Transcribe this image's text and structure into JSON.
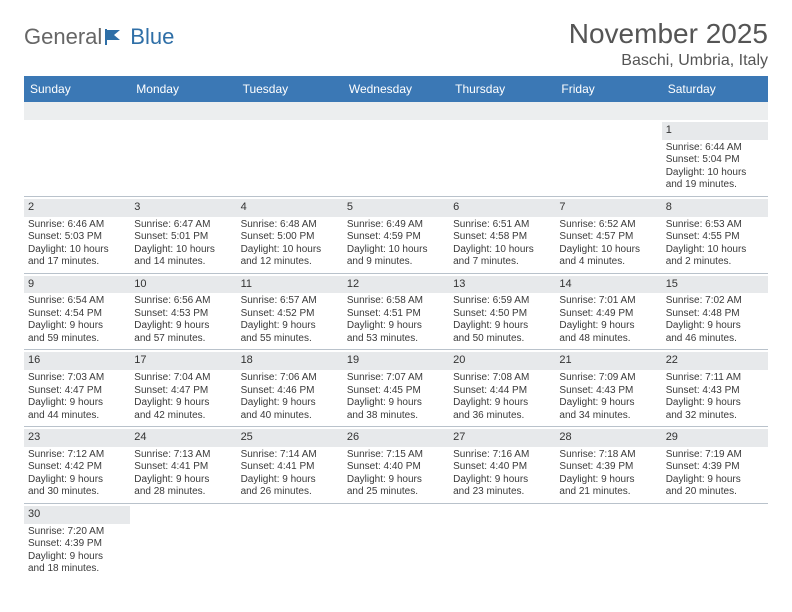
{
  "logo": {
    "textA": "General",
    "textB": "Blue"
  },
  "title": "November 2025",
  "location": "Baschi, Umbria, Italy",
  "colors": {
    "headerBg": "#3b78b5",
    "headerText": "#ffffff",
    "daynumBg": "#e7e9eb",
    "border": "#b9c2cb",
    "bodyText": "#3a3a3a",
    "titleText": "#555555"
  },
  "dayNames": [
    "Sunday",
    "Monday",
    "Tuesday",
    "Wednesday",
    "Thursday",
    "Friday",
    "Saturday"
  ],
  "weeks": [
    [
      null,
      null,
      null,
      null,
      null,
      null,
      {
        "n": "1",
        "sunrise": "Sunrise: 6:44 AM",
        "sunset": "Sunset: 5:04 PM",
        "day1": "Daylight: 10 hours",
        "day2": "and 19 minutes."
      }
    ],
    [
      {
        "n": "2",
        "sunrise": "Sunrise: 6:46 AM",
        "sunset": "Sunset: 5:03 PM",
        "day1": "Daylight: 10 hours",
        "day2": "and 17 minutes."
      },
      {
        "n": "3",
        "sunrise": "Sunrise: 6:47 AM",
        "sunset": "Sunset: 5:01 PM",
        "day1": "Daylight: 10 hours",
        "day2": "and 14 minutes."
      },
      {
        "n": "4",
        "sunrise": "Sunrise: 6:48 AM",
        "sunset": "Sunset: 5:00 PM",
        "day1": "Daylight: 10 hours",
        "day2": "and 12 minutes."
      },
      {
        "n": "5",
        "sunrise": "Sunrise: 6:49 AM",
        "sunset": "Sunset: 4:59 PM",
        "day1": "Daylight: 10 hours",
        "day2": "and 9 minutes."
      },
      {
        "n": "6",
        "sunrise": "Sunrise: 6:51 AM",
        "sunset": "Sunset: 4:58 PM",
        "day1": "Daylight: 10 hours",
        "day2": "and 7 minutes."
      },
      {
        "n": "7",
        "sunrise": "Sunrise: 6:52 AM",
        "sunset": "Sunset: 4:57 PM",
        "day1": "Daylight: 10 hours",
        "day2": "and 4 minutes."
      },
      {
        "n": "8",
        "sunrise": "Sunrise: 6:53 AM",
        "sunset": "Sunset: 4:55 PM",
        "day1": "Daylight: 10 hours",
        "day2": "and 2 minutes."
      }
    ],
    [
      {
        "n": "9",
        "sunrise": "Sunrise: 6:54 AM",
        "sunset": "Sunset: 4:54 PM",
        "day1": "Daylight: 9 hours",
        "day2": "and 59 minutes."
      },
      {
        "n": "10",
        "sunrise": "Sunrise: 6:56 AM",
        "sunset": "Sunset: 4:53 PM",
        "day1": "Daylight: 9 hours",
        "day2": "and 57 minutes."
      },
      {
        "n": "11",
        "sunrise": "Sunrise: 6:57 AM",
        "sunset": "Sunset: 4:52 PM",
        "day1": "Daylight: 9 hours",
        "day2": "and 55 minutes."
      },
      {
        "n": "12",
        "sunrise": "Sunrise: 6:58 AM",
        "sunset": "Sunset: 4:51 PM",
        "day1": "Daylight: 9 hours",
        "day2": "and 53 minutes."
      },
      {
        "n": "13",
        "sunrise": "Sunrise: 6:59 AM",
        "sunset": "Sunset: 4:50 PM",
        "day1": "Daylight: 9 hours",
        "day2": "and 50 minutes."
      },
      {
        "n": "14",
        "sunrise": "Sunrise: 7:01 AM",
        "sunset": "Sunset: 4:49 PM",
        "day1": "Daylight: 9 hours",
        "day2": "and 48 minutes."
      },
      {
        "n": "15",
        "sunrise": "Sunrise: 7:02 AM",
        "sunset": "Sunset: 4:48 PM",
        "day1": "Daylight: 9 hours",
        "day2": "and 46 minutes."
      }
    ],
    [
      {
        "n": "16",
        "sunrise": "Sunrise: 7:03 AM",
        "sunset": "Sunset: 4:47 PM",
        "day1": "Daylight: 9 hours",
        "day2": "and 44 minutes."
      },
      {
        "n": "17",
        "sunrise": "Sunrise: 7:04 AM",
        "sunset": "Sunset: 4:47 PM",
        "day1": "Daylight: 9 hours",
        "day2": "and 42 minutes."
      },
      {
        "n": "18",
        "sunrise": "Sunrise: 7:06 AM",
        "sunset": "Sunset: 4:46 PM",
        "day1": "Daylight: 9 hours",
        "day2": "and 40 minutes."
      },
      {
        "n": "19",
        "sunrise": "Sunrise: 7:07 AM",
        "sunset": "Sunset: 4:45 PM",
        "day1": "Daylight: 9 hours",
        "day2": "and 38 minutes."
      },
      {
        "n": "20",
        "sunrise": "Sunrise: 7:08 AM",
        "sunset": "Sunset: 4:44 PM",
        "day1": "Daylight: 9 hours",
        "day2": "and 36 minutes."
      },
      {
        "n": "21",
        "sunrise": "Sunrise: 7:09 AM",
        "sunset": "Sunset: 4:43 PM",
        "day1": "Daylight: 9 hours",
        "day2": "and 34 minutes."
      },
      {
        "n": "22",
        "sunrise": "Sunrise: 7:11 AM",
        "sunset": "Sunset: 4:43 PM",
        "day1": "Daylight: 9 hours",
        "day2": "and 32 minutes."
      }
    ],
    [
      {
        "n": "23",
        "sunrise": "Sunrise: 7:12 AM",
        "sunset": "Sunset: 4:42 PM",
        "day1": "Daylight: 9 hours",
        "day2": "and 30 minutes."
      },
      {
        "n": "24",
        "sunrise": "Sunrise: 7:13 AM",
        "sunset": "Sunset: 4:41 PM",
        "day1": "Daylight: 9 hours",
        "day2": "and 28 minutes."
      },
      {
        "n": "25",
        "sunrise": "Sunrise: 7:14 AM",
        "sunset": "Sunset: 4:41 PM",
        "day1": "Daylight: 9 hours",
        "day2": "and 26 minutes."
      },
      {
        "n": "26",
        "sunrise": "Sunrise: 7:15 AM",
        "sunset": "Sunset: 4:40 PM",
        "day1": "Daylight: 9 hours",
        "day2": "and 25 minutes."
      },
      {
        "n": "27",
        "sunrise": "Sunrise: 7:16 AM",
        "sunset": "Sunset: 4:40 PM",
        "day1": "Daylight: 9 hours",
        "day2": "and 23 minutes."
      },
      {
        "n": "28",
        "sunrise": "Sunrise: 7:18 AM",
        "sunset": "Sunset: 4:39 PM",
        "day1": "Daylight: 9 hours",
        "day2": "and 21 minutes."
      },
      {
        "n": "29",
        "sunrise": "Sunrise: 7:19 AM",
        "sunset": "Sunset: 4:39 PM",
        "day1": "Daylight: 9 hours",
        "day2": "and 20 minutes."
      }
    ],
    [
      {
        "n": "30",
        "sunrise": "Sunrise: 7:20 AM",
        "sunset": "Sunset: 4:39 PM",
        "day1": "Daylight: 9 hours",
        "day2": "and 18 minutes."
      },
      null,
      null,
      null,
      null,
      null,
      null
    ]
  ]
}
